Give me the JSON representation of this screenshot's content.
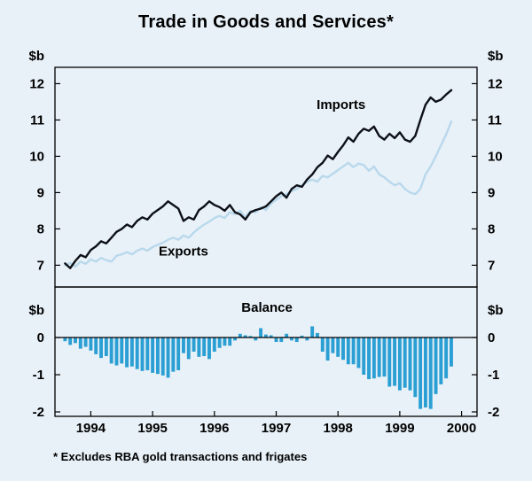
{
  "title": "Trade in Goods and Services*",
  "footnote": "* Excludes RBA gold transactions and frigates",
  "colors": {
    "background": "#e8f1f8",
    "axis": "#000000",
    "text": "#000000",
    "imports_line": "#0d1117",
    "exports_line": "#b9d8ec",
    "balance_bar": "#2b9fd3"
  },
  "chart_data": {
    "type": "line+bar",
    "x": {
      "start": 1993.5833,
      "step": 0.0833333,
      "min": 1993.42,
      "max": 2000.25,
      "ticks": [
        1994,
        1995,
        1996,
        1997,
        1998,
        1999,
        2000
      ]
    },
    "panels": [
      {
        "name": "trade-levels",
        "type": "line",
        "ylabel": "$b",
        "y_range": [
          6.4,
          12.45
        ],
        "yticks": [
          7,
          8,
          9,
          10,
          11,
          12
        ],
        "series": [
          {
            "name": "Exports",
            "color_key": "exports_line",
            "values": [
              7.0,
              7.06,
              6.96,
              7.1,
              7.04,
              7.16,
              7.1,
              7.2,
              7.14,
              7.1,
              7.26,
              7.3,
              7.36,
              7.3,
              7.4,
              7.46,
              7.4,
              7.5,
              7.56,
              7.62,
              7.7,
              7.76,
              7.7,
              7.82,
              7.76,
              7.9,
              8.02,
              8.12,
              8.2,
              8.3,
              8.36,
              8.3,
              8.46,
              8.4,
              8.5,
              8.32,
              8.5,
              8.46,
              8.6,
              8.52,
              8.7,
              8.8,
              8.9,
              8.96,
              9.04,
              9.1,
              9.2,
              9.3,
              9.36,
              9.3,
              9.46,
              9.42,
              9.52,
              9.62,
              9.72,
              9.82,
              9.7,
              9.8,
              9.76,
              9.6,
              9.72,
              9.5,
              9.42,
              9.3,
              9.2,
              9.26,
              9.1,
              9.0,
              8.96,
              9.1,
              9.5,
              9.72,
              10.0,
              10.3,
              10.6,
              10.96
            ]
          },
          {
            "name": "Imports",
            "color_key": "imports_line",
            "values": [
              7.05,
              6.92,
              7.12,
              7.28,
              7.22,
              7.42,
              7.52,
              7.66,
              7.6,
              7.76,
              7.92,
              8.0,
              8.12,
              8.05,
              8.22,
              8.32,
              8.26,
              8.42,
              8.52,
              8.62,
              8.76,
              8.66,
              8.56,
              8.22,
              8.32,
              8.26,
              8.52,
              8.62,
              8.76,
              8.66,
              8.6,
              8.5,
              8.66,
              8.46,
              8.4,
              8.26,
              8.46,
              8.52,
              8.56,
              8.62,
              8.76,
              8.9,
              9.0,
              8.86,
              9.1,
              9.2,
              9.16,
              9.36,
              9.5,
              9.7,
              9.82,
              10.02,
              9.92,
              10.12,
              10.3,
              10.52,
              10.4,
              10.62,
              10.76,
              10.7,
              10.82,
              10.56,
              10.46,
              10.62,
              10.5,
              10.66,
              10.46,
              10.4,
              10.56,
              11.0,
              11.42,
              11.62,
              11.5,
              11.56,
              11.7,
              11.82
            ]
          }
        ],
        "annotations": [
          {
            "text": "Imports",
            "x": 1998.05,
            "y": 11.3
          },
          {
            "text": "Exports",
            "x": 1995.5,
            "y": 7.26
          }
        ]
      },
      {
        "name": "trade-balance",
        "type": "bar",
        "ylabel": "$b",
        "y_range": [
          -2.119,
          1.357
        ],
        "yticks": [
          0,
          -1,
          -2
        ],
        "series": [
          {
            "name": "Balance",
            "color_key": "balance_bar",
            "values": [
              -0.1,
              -0.2,
              -0.15,
              -0.3,
              -0.25,
              -0.35,
              -0.45,
              -0.55,
              -0.5,
              -0.7,
              -0.75,
              -0.7,
              -0.8,
              -0.78,
              -0.85,
              -0.9,
              -0.88,
              -0.95,
              -0.98,
              -1.02,
              -1.08,
              -0.92,
              -0.88,
              -0.42,
              -0.58,
              -0.38,
              -0.52,
              -0.5,
              -0.58,
              -0.38,
              -0.28,
              -0.22,
              -0.22,
              -0.08,
              0.1,
              0.06,
              0.04,
              -0.08,
              0.25,
              0.08,
              0.06,
              -0.12,
              -0.12,
              0.1,
              -0.08,
              -0.12,
              0.05,
              -0.08,
              0.3,
              0.12,
              -0.38,
              -0.62,
              -0.42,
              -0.52,
              -0.6,
              -0.72,
              -0.72,
              -0.82,
              -1.0,
              -1.12,
              -1.1,
              -1.06,
              -1.05,
              -1.32,
              -1.3,
              -1.42,
              -1.35,
              -1.42,
              -1.6,
              -1.92,
              -1.88,
              -1.92,
              -1.52,
              -1.26,
              -1.1,
              -0.78
            ]
          }
        ],
        "annotations": [
          {
            "text": "Balance",
            "x": 1996.85,
            "y": 0.69
          }
        ]
      }
    ]
  }
}
